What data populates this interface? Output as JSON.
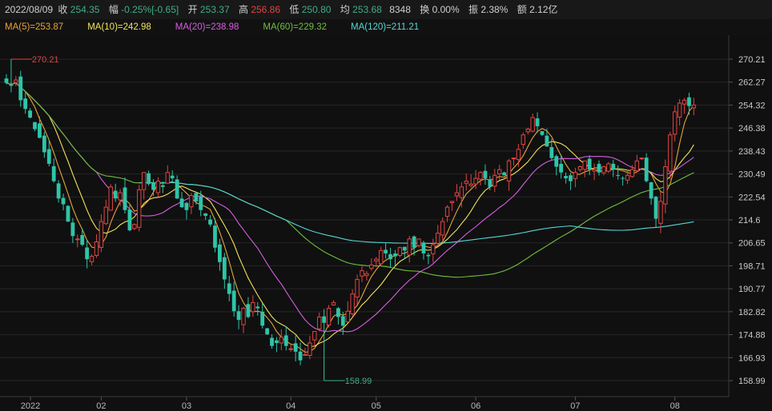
{
  "info": {
    "date": "2022/08/09",
    "close_label": "收",
    "close": "254.35",
    "change_label": "幅",
    "change": "-0.25%[-0.65]",
    "open_label": "开",
    "open": "253.37",
    "high_label": "高",
    "high": "256.86",
    "low_label": "低",
    "low": "250.80",
    "avg_label": "均",
    "avg": "253.68",
    "volume": "8348",
    "turnover_label": "换",
    "turnover": "0.00%",
    "amplitude_label": "振",
    "amplitude": "2.38%",
    "amount_label": "额",
    "amount": "2.12亿"
  },
  "ma_legend": [
    {
      "text": "MA(5)=253.87",
      "color": "#e8a33a"
    },
    {
      "text": "MA(10)=242.98",
      "color": "#f1e35b"
    },
    {
      "text": "MA(20)=238.98",
      "color": "#d65ee0"
    },
    {
      "text": "MA(60)=229.32",
      "color": "#6fbf3d"
    },
    {
      "text": "MA(120)=211.21",
      "color": "#56d6d6"
    }
  ],
  "colors": {
    "up": "#e04444",
    "down": "#2fc4a8",
    "grid": "#262626"
  },
  "chart_data": {
    "type": "candlestick",
    "y_ticks": [
      "270.21",
      "262.27",
      "254.32",
      "246.38",
      "238.43",
      "230.49",
      "222.54",
      "214.6",
      "206.65",
      "198.71",
      "190.77",
      "182.82",
      "174.88",
      "166.93",
      "158.99"
    ],
    "ylim": [
      158.99,
      270.21
    ],
    "x_ticks": [
      {
        "label": "2022",
        "idx": 0
      },
      {
        "label": "02",
        "idx": 20
      },
      {
        "label": "03",
        "idx": 38
      },
      {
        "label": "04",
        "idx": 60
      },
      {
        "label": "05",
        "idx": 78
      },
      {
        "label": "06",
        "idx": 99
      },
      {
        "label": "07",
        "idx": 120
      },
      {
        "label": "08",
        "idx": 141
      }
    ],
    "max_marker": {
      "label": "270.21",
      "idx": 1
    },
    "min_marker": {
      "label": "158.99",
      "idx": 67
    },
    "ma_values": {
      "MA(5)": 253.87,
      "MA(10)": 242.98,
      "MA(20)": 238.98,
      "MA(60)": 229.32,
      "MA(120)": 211.21
    },
    "last_candle": {
      "open": 253.37,
      "high": 256.86,
      "low": 250.8,
      "close": 254.35
    },
    "closes": [
      262,
      261,
      263,
      256,
      253,
      250,
      246,
      243,
      238,
      234,
      228,
      222,
      220,
      214,
      209,
      208,
      206,
      201,
      202,
      207,
      214,
      219,
      226,
      222,
      224,
      218,
      211,
      213,
      225,
      231,
      227,
      225,
      228,
      226,
      231,
      229,
      222,
      219,
      218,
      223,
      221,
      218,
      216,
      213,
      205,
      200,
      194,
      189,
      183,
      180,
      184,
      181,
      186,
      184,
      178,
      175,
      171,
      172,
      174,
      171,
      170,
      169,
      166,
      168,
      172,
      176,
      181,
      179,
      184,
      186,
      181,
      178,
      183,
      189,
      194,
      197,
      196,
      199,
      201,
      204,
      203,
      201,
      202,
      205,
      204,
      208,
      205,
      208,
      203,
      202,
      206,
      210,
      214,
      219,
      221,
      224,
      226,
      228,
      227,
      229,
      231,
      229,
      226,
      230,
      232,
      230,
      235,
      236,
      239,
      244,
      246,
      250,
      247,
      244,
      240,
      236,
      233,
      231,
      229,
      228,
      231,
      233,
      235,
      232,
      232,
      231,
      233,
      234,
      232,
      230,
      229,
      230,
      232,
      235,
      236,
      228,
      222,
      215,
      221,
      233,
      244,
      252,
      255,
      256,
      254,
      254.35
    ]
  }
}
